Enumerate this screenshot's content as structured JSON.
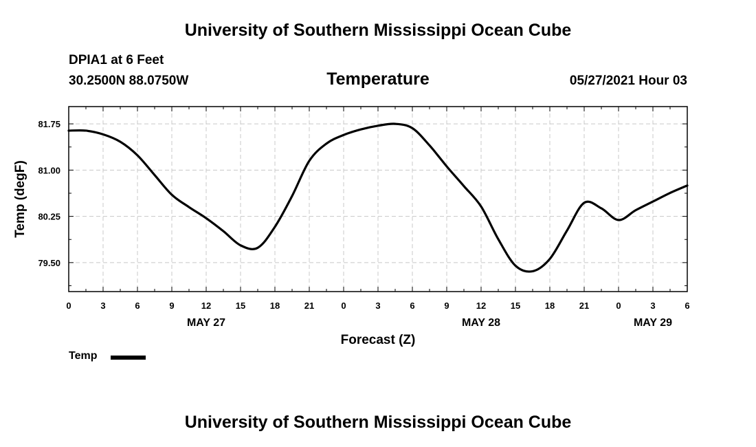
{
  "header": {
    "title": "University of Southern Mississippi Ocean Cube",
    "station": "DPIA1 at 6 Feet",
    "coords": "30.2500N  88.0750W",
    "timestamp": "05/27/2021 Hour 03"
  },
  "footer": {
    "title": "University of Southern Mississippi Ocean Cube"
  },
  "chart_data": {
    "type": "line",
    "title": "Temperature",
    "xlabel": "Forecast (Z)",
    "ylabel": "Temp (degF)",
    "x_unit": "hours since May 27 00Z",
    "xlim": [
      0,
      54
    ],
    "ylim": [
      79.03,
      82.03
    ],
    "yticks": [
      "81.75",
      "81.00",
      "80.25",
      "79.50"
    ],
    "ytick_values": [
      81.75,
      81.0,
      80.25,
      79.5
    ],
    "xtick_hours": [
      0,
      3,
      6,
      9,
      12,
      15,
      18,
      21,
      24,
      27,
      30,
      33,
      36,
      39,
      42,
      45,
      48,
      51,
      54
    ],
    "xtick_labels": [
      "0",
      "3",
      "6",
      "9",
      "12",
      "15",
      "18",
      "21",
      "0",
      "3",
      "6",
      "9",
      "12",
      "15",
      "18",
      "21",
      "0",
      "3",
      "6"
    ],
    "date_labels": [
      {
        "text": "MAY 27",
        "hour": 12
      },
      {
        "text": "MAY 28",
        "hour": 36
      },
      {
        "text": "MAY 29",
        "hour": 51
      }
    ],
    "grid": true,
    "legend_position": "bottom-left",
    "series": [
      {
        "name": "Temp",
        "color": "#000000",
        "x": [
          0,
          1.5,
          3,
          4.5,
          6,
          7.5,
          9,
          10.5,
          12,
          13.5,
          15,
          16.5,
          18,
          19.5,
          21,
          22.5,
          24,
          25.5,
          27,
          28.5,
          30,
          31.5,
          33,
          34.5,
          36,
          37.5,
          39,
          40.5,
          42,
          43.5,
          45,
          46.5,
          48,
          49.5,
          51,
          52.5,
          54
        ],
        "y": [
          81.64,
          81.64,
          81.58,
          81.46,
          81.24,
          80.92,
          80.6,
          80.4,
          80.22,
          80.01,
          79.78,
          79.74,
          80.08,
          80.58,
          81.15,
          81.43,
          81.57,
          81.66,
          81.72,
          81.75,
          81.68,
          81.4,
          81.06,
          80.74,
          80.41,
          79.88,
          79.45,
          79.36,
          79.56,
          80.02,
          80.47,
          80.38,
          80.19,
          80.35,
          80.49,
          80.63,
          80.75
        ]
      }
    ]
  }
}
